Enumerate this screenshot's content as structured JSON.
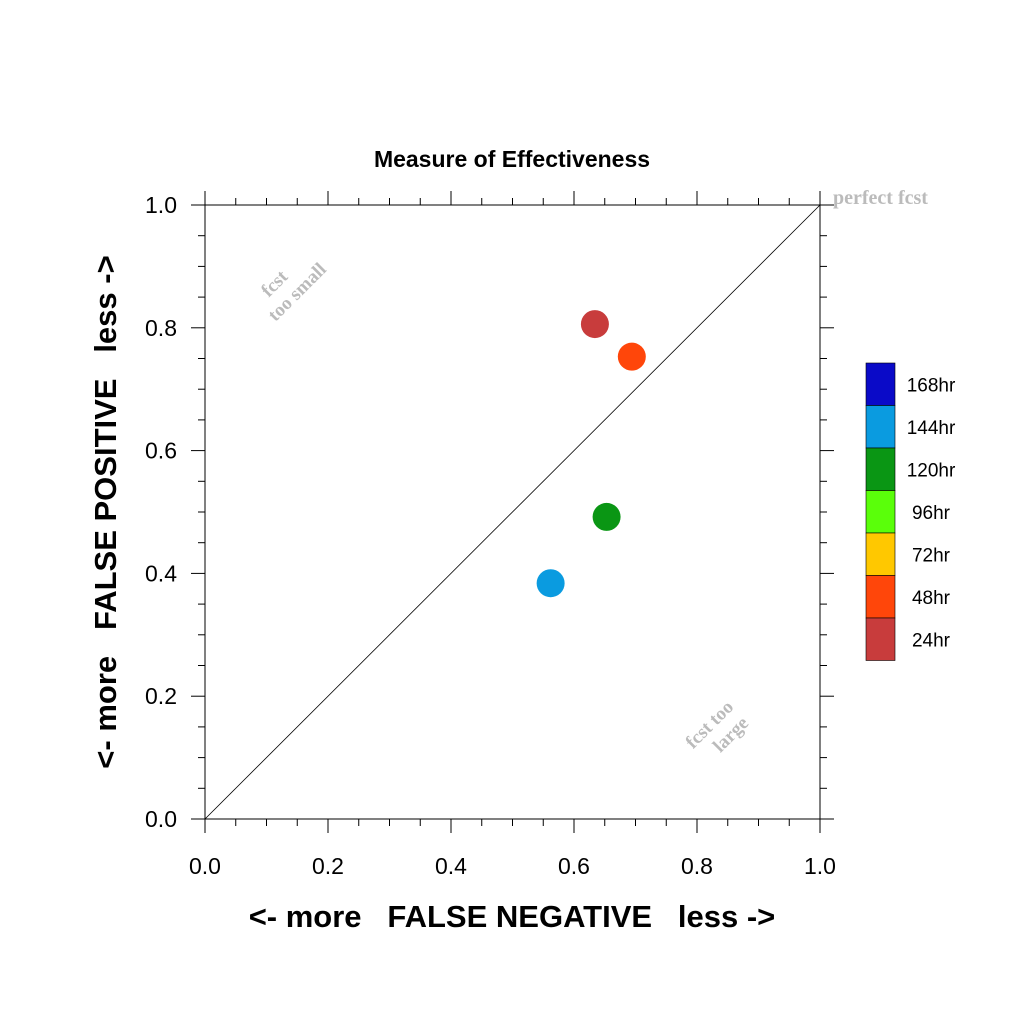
{
  "chart_data": {
    "type": "scatter",
    "title": "Measure of Effectiveness",
    "xlabel": "<- more   FALSE NEGATIVE   less ->",
    "ylabel": "<- more   FALSE POSITIVE   less ->",
    "xlim": [
      0,
      1
    ],
    "ylim": [
      0,
      1
    ],
    "xticks": [
      "0.0",
      "0.2",
      "0.4",
      "0.6",
      "0.8",
      "1.0"
    ],
    "yticks": [
      "0.0",
      "0.2",
      "0.4",
      "0.6",
      "0.8",
      "1.0"
    ],
    "grid": false,
    "reference_line": {
      "from": [
        0,
        0
      ],
      "to": [
        1,
        1
      ]
    },
    "annotations": {
      "perfect": "perfect fcst",
      "small_line1": "fcst",
      "small_line2": "too small",
      "large_line1": "fcst too",
      "large_line2": "large"
    },
    "legend": {
      "placement": "right",
      "entries": [
        {
          "label": "168hr",
          "color": "#0a0ac8"
        },
        {
          "label": "144hr",
          "color": "#0a9be0"
        },
        {
          "label": "120hr",
          "color": "#0a9614"
        },
        {
          "label": "96hr",
          "color": "#5aff0a"
        },
        {
          "label": "72hr",
          "color": "#ffc800"
        },
        {
          "label": "48hr",
          "color": "#ff460a"
        },
        {
          "label": "24hr",
          "color": "#c83c3c"
        }
      ]
    },
    "points": [
      {
        "series": "24hr",
        "x": 0.634,
        "y": 0.806,
        "color": "#c83c3c"
      },
      {
        "series": "48hr",
        "x": 0.694,
        "y": 0.753,
        "color": "#ff460a"
      },
      {
        "series": "120hr",
        "x": 0.653,
        "y": 0.492,
        "color": "#0a9614"
      },
      {
        "series": "144hr",
        "x": 0.562,
        "y": 0.384,
        "color": "#0a9be0"
      }
    ]
  }
}
